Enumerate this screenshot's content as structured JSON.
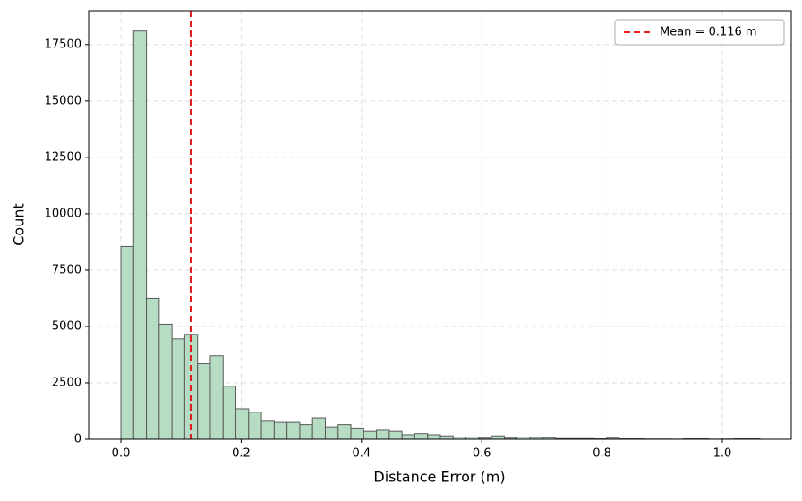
{
  "chart_data": {
    "type": "histogram",
    "xlabel": "Distance Error (m)",
    "ylabel": "Count",
    "bins": [
      0,
      0.02125,
      0.0425,
      0.06375,
      0.085,
      0.10625,
      0.1275,
      0.14875,
      0.17,
      0.19125,
      0.2125,
      0.23375,
      0.255,
      0.27625,
      0.2975,
      0.31875,
      0.34,
      0.36125,
      0.3825,
      0.40375,
      0.425,
      0.44625,
      0.4675,
      0.48875,
      0.51,
      0.53125,
      0.5525,
      0.57375,
      0.595,
      0.61625,
      0.6375,
      0.65875,
      0.68,
      0.70125,
      0.7225,
      0.74375,
      0.765,
      0.78625,
      0.8075,
      0.82875,
      0.85,
      0.87125,
      0.8925,
      0.91375,
      0.935,
      0.95625,
      0.9775,
      0.99875,
      1.02,
      1.04125,
      1.0625
    ],
    "values": [
      8550,
      18100,
      6250,
      5100,
      4450,
      4650,
      3350,
      3700,
      2350,
      1350,
      1200,
      800,
      750,
      750,
      650,
      950,
      550,
      650,
      500,
      350,
      400,
      350,
      200,
      250,
      200,
      150,
      100,
      100,
      50,
      150,
      50,
      100,
      80,
      70,
      30,
      30,
      30,
      20,
      50,
      20,
      20,
      10,
      10,
      5,
      20,
      20,
      5,
      10,
      20,
      20
    ],
    "color": "#b7dcc4",
    "edgecolor": "#5a5a5a",
    "mean_line": {
      "value": 0.116,
      "label": "Mean = 0.116 m",
      "color": "#e31a1c"
    },
    "xlim": [
      -0.0536,
      1.1146
    ],
    "ylim": [
      0,
      19000
    ],
    "xticks": [
      {
        "value": 0,
        "label": "0.0"
      },
      {
        "value": 0.2,
        "label": "0.2"
      },
      {
        "value": 0.4,
        "label": "0.4"
      },
      {
        "value": 0.6,
        "label": "0.6"
      },
      {
        "value": 0.8,
        "label": "0.8"
      },
      {
        "value": 1,
        "label": "1.0"
      }
    ],
    "yticks": [
      0,
      2500,
      5000,
      7500,
      10000,
      12500,
      15000,
      17500
    ],
    "grid": true,
    "legend_position": "upper right"
  }
}
